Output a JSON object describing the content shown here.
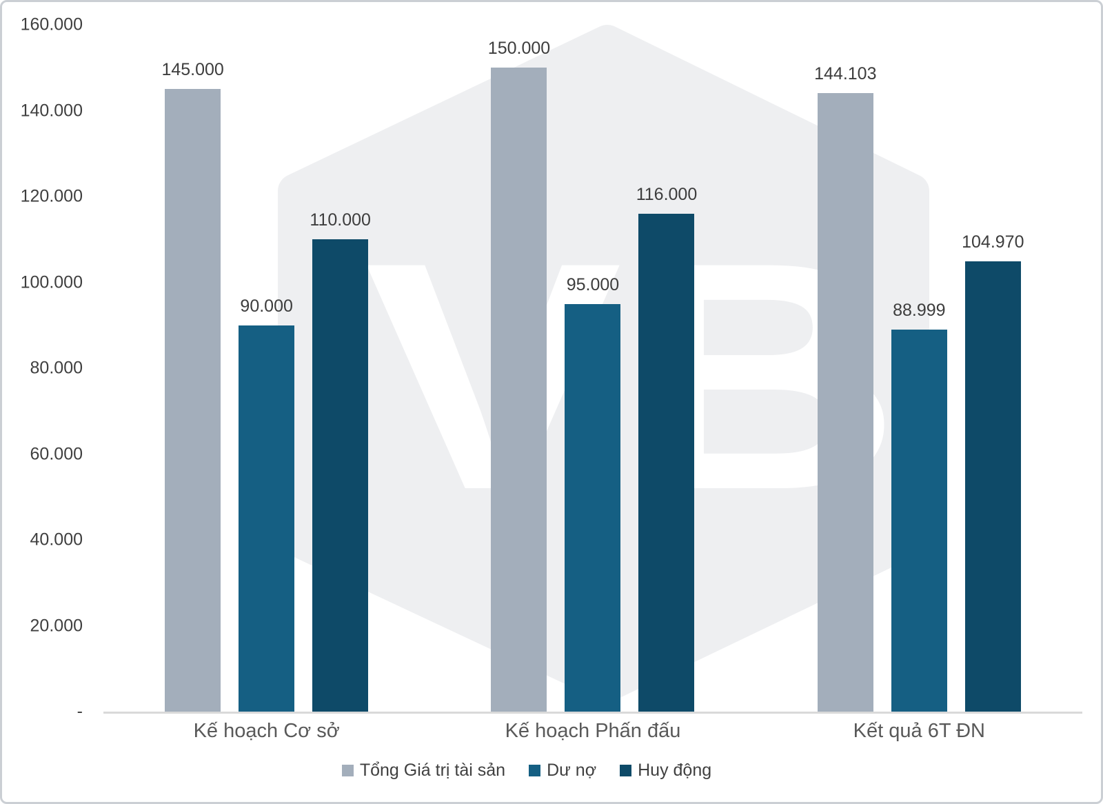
{
  "chart_data": {
    "type": "bar",
    "title": "",
    "categories": [
      "Kế hoạch Cơ sở",
      "Kế hoạch Phấn đấu",
      "Kết quả 6T ĐN"
    ],
    "series": [
      {
        "name": "Tổng Giá trị tài sản",
        "color": "#a3aebb",
        "values": [
          145000,
          150000,
          144103
        ],
        "labels": [
          "145.000",
          "150.000",
          "144.103"
        ]
      },
      {
        "name": "Dư nợ",
        "color": "#155f83",
        "values": [
          90000,
          95000,
          88999
        ],
        "labels": [
          "90.000",
          "95.000",
          "88.999"
        ]
      },
      {
        "name": "Huy động",
        "color": "#0e4a68",
        "values": [
          110000,
          116000,
          104970
        ],
        "labels": [
          "110.000",
          "116.000",
          "104.970"
        ]
      }
    ],
    "y_axis": {
      "ticks": [
        "160.000",
        "140.000",
        "120.000",
        "100.000",
        "80.000",
        "60.000",
        "40.000",
        "20.000",
        "-"
      ],
      "min": 0,
      "max": 160000,
      "tick_step": 20000
    },
    "xlabel": "",
    "ylabel": "",
    "grid": false,
    "legend_position": "bottom"
  },
  "watermark": {
    "text": "VB",
    "shape": "hexagon",
    "hexagon_color": "#eeeff1",
    "text_color": "#ffffff"
  },
  "colors": {
    "background": "#ffffff",
    "border": "#cbcfd4",
    "axis_line": "#d9d9d9",
    "tick_label": "#3f3f3f",
    "category_label": "#595959",
    "data_label": "#3d3d3d",
    "legend_label": "#404040"
  }
}
